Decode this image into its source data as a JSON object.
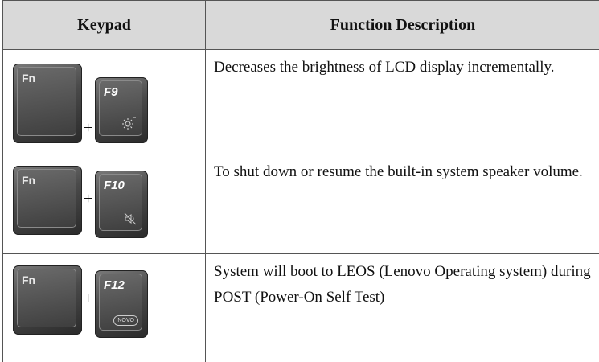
{
  "table": {
    "header": [
      "Keypad",
      "Function Description"
    ],
    "rows": [
      {
        "keys": [
          "Fn",
          "F9"
        ],
        "joiner": "+",
        "description": "Decreases the brightness of LCD display incrementally."
      },
      {
        "keys": [
          "Fn",
          "F10"
        ],
        "joiner": "+",
        "description": "To shut down or resume the built-in system speaker volume."
      },
      {
        "keys": [
          "Fn",
          "F12"
        ],
        "joiner": "+",
        "key_badge": "NOVO",
        "description": "System will boot to LEOS (Lenovo Operating system) during POST (Power-On Self Test)"
      }
    ]
  }
}
